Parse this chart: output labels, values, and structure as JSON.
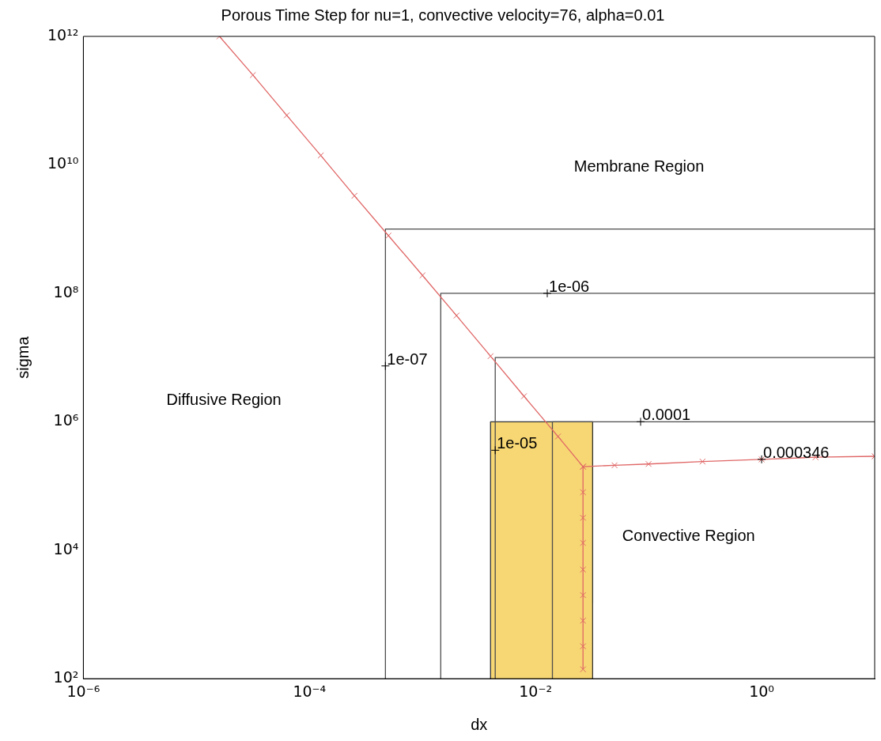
{
  "chart_data": {
    "type": "line",
    "title": "Porous Time Step for nu=1, convective velocity=76, alpha=0.01",
    "xlabel": "dx",
    "ylabel": "sigma",
    "log": "xy",
    "grid": false,
    "legend": false,
    "xlim": [
      1e-06,
      10
    ],
    "ylim": [
      100,
      1000000000000.0
    ],
    "xticks": [
      {
        "value": 1e-06,
        "label": "10⁻⁶"
      },
      {
        "value": 0.0001,
        "label": "10⁻⁴"
      },
      {
        "value": 0.01,
        "label": "10⁻²"
      },
      {
        "value": 1,
        "label": "10⁰"
      }
    ],
    "yticks": [
      {
        "value": 100,
        "label": "10²"
      },
      {
        "value": 10000,
        "label": "10⁴"
      },
      {
        "value": 1000000,
        "label": "10⁶"
      },
      {
        "value": 100000000,
        "label": "10⁸"
      },
      {
        "value": 10000000000,
        "label": "10¹⁰"
      },
      {
        "value": 1000000000000,
        "label": "10¹²"
      }
    ],
    "series": [
      {
        "type": "area",
        "color": "#f7d774",
        "marker": "none",
        "x": [
          0.004,
          0.004,
          0.032,
          0.032
        ],
        "values": [
          100,
          1000000,
          1000000,
          100
        ]
      },
      {
        "type": "line",
        "color": "#4d4d4d",
        "marker": "none",
        "x": [
          0.00047,
          0.00047,
          10
        ],
        "values": [
          100,
          1000000000,
          1000000000
        ]
      },
      {
        "type": "line",
        "color": "#4d4d4d",
        "marker": "none",
        "x": [
          0.00145,
          0.00145,
          10
        ],
        "values": [
          100,
          100000000,
          100000000
        ]
      },
      {
        "type": "line",
        "color": "#4d4d4d",
        "marker": "none",
        "x": [
          0.0044,
          0.0044,
          10
        ],
        "values": [
          100,
          10000000,
          10000000
        ]
      },
      {
        "type": "line",
        "color": "#4d4d4d",
        "marker": "none",
        "x": [
          0.0141,
          0.0141,
          10
        ],
        "values": [
          100,
          1000000,
          1000000
        ]
      },
      {
        "type": "line",
        "color": "#e06666",
        "marker": "cross",
        "x": [
          1.6e-05,
          3.16e-05,
          6.3e-05,
          0.000126,
          0.00025,
          0.0005,
          0.001,
          0.002,
          0.004,
          0.0079,
          0.0158,
          0.0263,
          0.05,
          0.1,
          0.3,
          1,
          3,
          10
        ],
        "values": [
          1000000000000.0,
          250000000000.0,
          59000000000.0,
          14000000000.0,
          3300000000.0,
          790000000.0,
          190000000.0,
          45000000.0,
          10500000.0,
          2500000.0,
          590000.0,
          200000.0,
          210000.0,
          220000.0,
          240000.0,
          260000.0,
          280000.0,
          290000.0
        ]
      },
      {
        "type": "line",
        "color": "#e06666",
        "marker": "cross",
        "x": [
          0.0263,
          0.0263,
          0.0263,
          0.0263,
          0.0263,
          0.0263,
          0.0263,
          0.0263,
          0.0263
        ],
        "values": [
          200000.0,
          80000.0,
          32000.0,
          13000.0,
          5000.0,
          2000.0,
          800.0,
          320.0,
          140.0
        ]
      }
    ],
    "annotations": [
      "Membrane Region",
      "Diffusive Region",
      "Convective Region",
      {
        "text": "1e-07",
        "x": 0.00047,
        "y": 7400000.0
      },
      {
        "text": "1e-06",
        "x": 0.0127,
        "y": 100000000.0
      },
      {
        "text": "1e-05",
        "x": 0.0044,
        "y": 360000.0
      },
      {
        "text": "0.0001",
        "x": 0.085,
        "y": 1000000.0
      },
      {
        "text": "0.000346",
        "x": 1,
        "y": 260000.0
      }
    ]
  }
}
